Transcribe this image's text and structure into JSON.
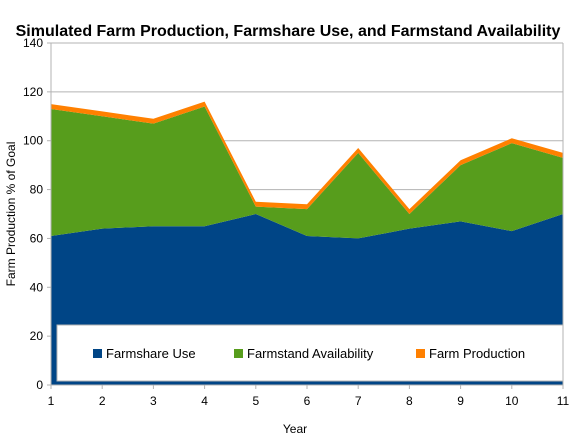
{
  "chart_data": {
    "type": "area",
    "title": "Simulated Farm Production, Farmshare Use, and Farmstand Availability",
    "xlabel": "Year",
    "ylabel": "Farm Production % of Goal",
    "x": [
      1,
      2,
      3,
      4,
      5,
      6,
      7,
      8,
      9,
      10,
      11
    ],
    "xlim": [
      1,
      11
    ],
    "ylim": [
      0,
      140
    ],
    "yticks": [
      0,
      20,
      40,
      60,
      80,
      100,
      120,
      140
    ],
    "stacked": true,
    "grid": "horizontal",
    "legend_position": "bottom-inside",
    "series": [
      {
        "name": "Farmshare Use",
        "color": "#004586",
        "values": [
          61,
          64,
          65,
          65,
          70,
          61,
          60,
          64,
          67,
          63,
          70
        ]
      },
      {
        "name": "Farmstand Availability",
        "color": "#579d1c",
        "values": [
          52,
          46,
          42,
          49,
          3,
          11,
          35,
          6,
          23,
          36,
          23
        ]
      },
      {
        "name": "Farm Production",
        "color": "#ff8000",
        "values": [
          2,
          2,
          2,
          2,
          2,
          2,
          2,
          2,
          2,
          2,
          2
        ]
      }
    ]
  }
}
